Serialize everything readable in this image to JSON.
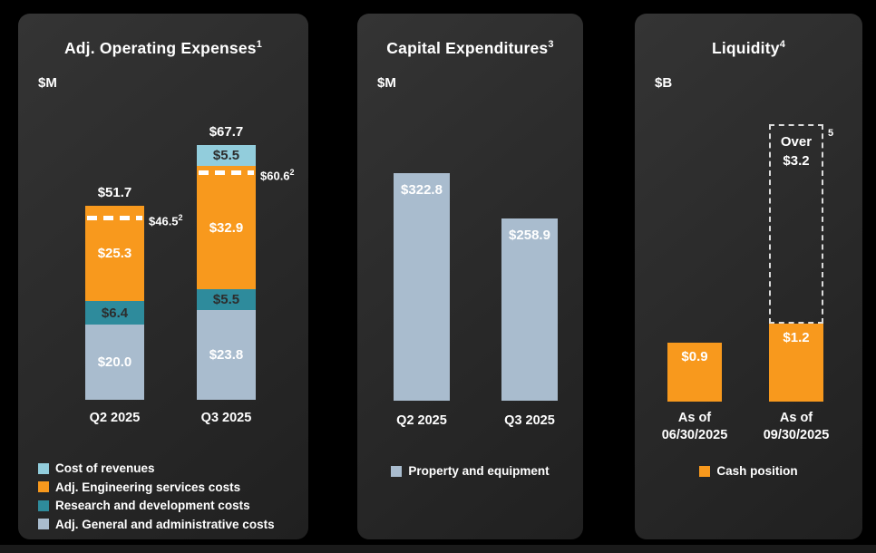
{
  "slide": {
    "background": "#000000",
    "bottom_strip_color": "#1a1a1a"
  },
  "colors": {
    "orange": "#F8991D",
    "cyan": "#92CDDC",
    "teal": "#2E8B9C",
    "grayblue": "#A9BCCE",
    "white": "#FFFFFF",
    "dark_label": "#2D2D2D",
    "dashed_box_border": "#DCDCDC"
  },
  "chart_data": [
    {
      "type": "stacked-bar",
      "title": "Adj. Operating Expenses",
      "title_superscript": "1",
      "unit": "$M",
      "categories": [
        "Q2 2025",
        "Q3 2025"
      ],
      "series": [
        {
          "name": "Cost of revenues",
          "color_key": "cyan",
          "label_style": "dark",
          "values": [
            0,
            5.5
          ],
          "labels": [
            "",
            "$5.5"
          ]
        },
        {
          "name": "Adj. Engineering services costs",
          "color_key": "orange",
          "label_style": "light",
          "values": [
            25.3,
            32.9
          ],
          "labels": [
            "$25.3",
            "$32.9"
          ]
        },
        {
          "name": "Research and development costs",
          "color_key": "teal",
          "label_style": "dark",
          "values": [
            6.4,
            5.5
          ],
          "labels": [
            "$6.4",
            "$5.5"
          ]
        },
        {
          "name": "Adj. General and administrative costs",
          "color_key": "grayblue",
          "label_style": "light",
          "values": [
            20.0,
            23.8
          ],
          "labels": [
            "$20.0",
            "$23.8"
          ]
        }
      ],
      "totals": [
        51.7,
        67.7
      ],
      "total_labels": [
        "$51.7",
        "$67.7"
      ],
      "target_lines": [
        {
          "category_index": 0,
          "value": 46.5,
          "label": "$46.5",
          "superscript": "2"
        },
        {
          "category_index": 1,
          "value": 60.6,
          "label": "$60.6",
          "superscript": "2"
        }
      ],
      "legend": [
        "Cost of revenues",
        "Adj. Engineering services costs",
        "Research and development costs",
        "Adj. General and administrative costs"
      ],
      "ylim": [
        0,
        70
      ],
      "grid": false,
      "legend_position": "bottom-left"
    },
    {
      "type": "bar",
      "title": "Capital Expenditures",
      "title_superscript": "3",
      "unit": "$M",
      "categories": [
        "Q2 2025",
        "Q3 2025"
      ],
      "values": [
        322.8,
        258.9
      ],
      "bar_labels": [
        "$322.8",
        "$258.9"
      ],
      "series_name": "Property and equipment",
      "color_key": "grayblue",
      "legend": [
        "Property and equipment"
      ],
      "ylim": [
        0,
        350
      ],
      "grid": false,
      "legend_position": "bottom-center"
    },
    {
      "type": "bar",
      "title": "Liquidity",
      "title_superscript": "4",
      "unit": "$B",
      "categories": [
        [
          "As of",
          "06/30/2025"
        ],
        [
          "As of",
          "09/30/2025"
        ]
      ],
      "values": [
        0.9,
        1.2
      ],
      "bar_labels": [
        "$0.9",
        "$1.2"
      ],
      "series_name": "Cash position",
      "color_key": "orange",
      "annotation_box": {
        "lines": [
          "Over",
          "$3.2"
        ],
        "superscript": "5",
        "applies_to_category_index": 1
      },
      "legend": [
        "Cash position"
      ],
      "ylim": [
        0,
        4.5
      ],
      "grid": false,
      "legend_position": "bottom-center"
    }
  ]
}
